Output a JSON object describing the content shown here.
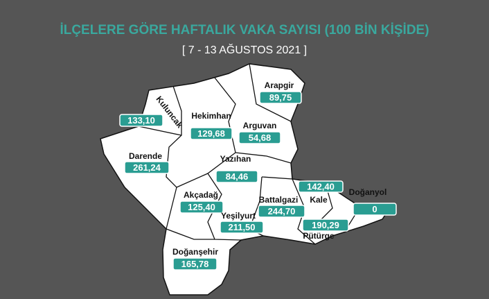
{
  "header": {
    "title": "İLÇELERE GÖRE HAFTALIK VAKA SAYISI (100 BİN KİŞİDE)",
    "subtitle": "[ 7 - 13 AĞUSTOS 2021 ]"
  },
  "districts": [
    {
      "name": "Arapgir",
      "value": "89,75"
    },
    {
      "name": "Kuluncak",
      "value": "133,10"
    },
    {
      "name": "Hekimhan",
      "value": "129,68"
    },
    {
      "name": "Arguvan",
      "value": "54,68"
    },
    {
      "name": "Darende",
      "value": "261,24"
    },
    {
      "name": "Yazıhan",
      "value": "84,46"
    },
    {
      "name": "Kale",
      "value": "142,40"
    },
    {
      "name": "Doğanyol",
      "value": "0"
    },
    {
      "name": "Akçadağ",
      "value": "125,40"
    },
    {
      "name": "Battalgazi",
      "value": "244,70"
    },
    {
      "name": "Yeşilyurt",
      "value": "211,50"
    },
    {
      "name": "Pütürge",
      "value": "190,29"
    },
    {
      "name": "Doğanşehir",
      "value": "165,78"
    }
  ]
}
